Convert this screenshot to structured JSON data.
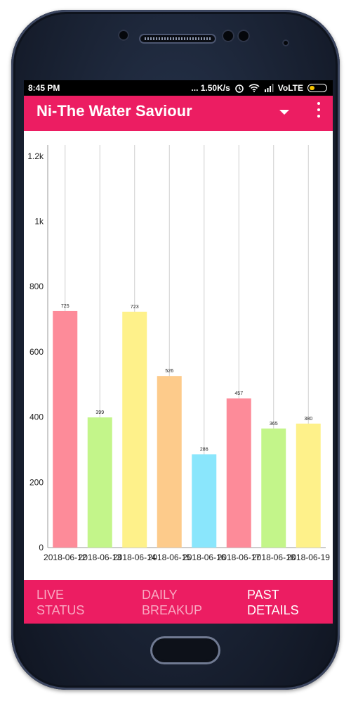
{
  "status_bar": {
    "time": "8:45 PM",
    "right_text": "... 1.50K/s",
    "carrier": "VoLTE"
  },
  "app_bar": {
    "title": "Ni-The Water Saviour",
    "dropdown_icon": "arrow-drop-down-icon",
    "menu_icon": "more-vert-icon"
  },
  "bottom_nav": {
    "tabs": [
      {
        "label": "LIVE\nSTATUS",
        "active": false
      },
      {
        "label": "DAILY\nBREAKUP",
        "active": false
      },
      {
        "label": "PAST\nDETAILS",
        "active": true
      }
    ]
  },
  "colors": {
    "accent": "#ec1d62",
    "bar_colors": [
      "#fd8b99",
      "#c3f58a",
      "#fef18a",
      "#fdcb8b",
      "#8ae6fc",
      "#fd8b99",
      "#c3f58a",
      "#fef18a"
    ]
  },
  "chart_data": {
    "type": "bar",
    "categories": [
      "2018-06-12",
      "2018-06-13",
      "2018-06-14",
      "2018-06-15",
      "2018-06-16",
      "2018-06-17",
      "2018-06-18",
      "2018-06-19"
    ],
    "values": [
      725,
      399,
      723,
      526,
      286,
      457,
      365,
      380
    ],
    "y_ticks": [
      "0",
      "200",
      "400",
      "600",
      "800",
      "1k",
      "1.2k"
    ],
    "ylim": [
      0,
      1234
    ],
    "grid": "vertical",
    "legend": "none"
  }
}
